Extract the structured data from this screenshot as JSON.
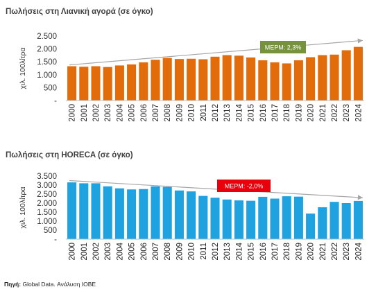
{
  "source": {
    "label": "Πηγή:",
    "text": "Global Data. Ανάλυση ΙΟΒΕ"
  },
  "chart_data": [
    {
      "type": "bar",
      "title": "Πωλήσεις στη Λιανική αγορά (σε όγκο)",
      "ylabel": "χιλ. 100λίτρα",
      "ylim": [
        0,
        2500
      ],
      "yticks": [
        "2.500",
        "2.000",
        "1.500",
        "1.000",
        "500",
        "-"
      ],
      "categories": [
        "2000",
        "2001",
        "2002",
        "2003",
        "2004",
        "2005",
        "2006",
        "2007",
        "2008",
        "2009",
        "2010",
        "2011",
        "2012",
        "2013",
        "2014",
        "2015",
        "2016",
        "2017",
        "2018",
        "2019",
        "2020",
        "2021",
        "2022",
        "2023",
        "2024"
      ],
      "values": [
        1330,
        1310,
        1330,
        1300,
        1360,
        1400,
        1480,
        1580,
        1650,
        1610,
        1620,
        1600,
        1700,
        1760,
        1740,
        1670,
        1560,
        1480,
        1440,
        1560,
        1680,
        1760,
        1780,
        1950,
        2080
      ],
      "color": "#E36C0A",
      "annotation": {
        "text": "ΜΕΡΜ: 2,3%",
        "color": "#76923C",
        "trend": "up"
      }
    },
    {
      "type": "bar",
      "title": "Πωλήσεις στη HORECA (σε όγκο)",
      "ylabel": "χιλ. 100λίτρα",
      "ylim": [
        0,
        3500
      ],
      "yticks": [
        "3.500",
        "3.000",
        "2.500",
        "2.000",
        "1.500",
        "1.000",
        "500",
        "-"
      ],
      "categories": [
        "2000",
        "2001",
        "2002",
        "2003",
        "2004",
        "2005",
        "2006",
        "2007",
        "2008",
        "2009",
        "2010",
        "2011",
        "2012",
        "2013",
        "2014",
        "2015",
        "2016",
        "2017",
        "2018",
        "2019",
        "2020",
        "2021",
        "2022",
        "2023",
        "2024"
      ],
      "values": [
        3150,
        3100,
        3100,
        2930,
        2820,
        2760,
        2780,
        2930,
        2900,
        2700,
        2650,
        2400,
        2300,
        2200,
        2150,
        2130,
        2350,
        2250,
        2380,
        2360,
        1420,
        1770,
        2070,
        2000,
        2120
      ],
      "color": "#1FA3E0",
      "annotation": {
        "text": "ΜΕΡΜ: -2,0%",
        "color": "#E8000D",
        "trend": "down"
      }
    }
  ]
}
